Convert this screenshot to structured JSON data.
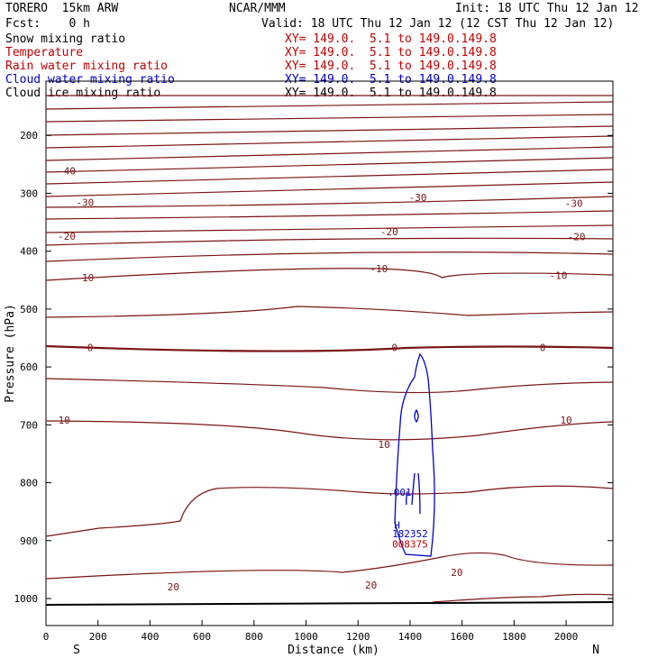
{
  "header": {
    "model": "TORERO  15km ARW",
    "org": "NCAR/MMM",
    "init": "Init: 18 UTC Thu 12 Jan 12",
    "fcst": "Fcst:    0 h",
    "valid": "Valid: 18 UTC Thu 12 Jan 12 (12 CST Thu 12 Jan 12)"
  },
  "legend": [
    {
      "label": "Snow mixing ratio",
      "xy": "XY= 149.0.  5.1 to 149.0.149.8",
      "color": "#000000"
    },
    {
      "label": "Temperature",
      "xy": "XY= 149.0.  5.1 to 149.0.149.8",
      "color": "#c00000"
    },
    {
      "label": "Rain water mixing ratio",
      "xy": "XY= 149.0.  5.1 to 149.0.149.8",
      "color": "#c00000"
    },
    {
      "label": "Cloud water mixing ratio",
      "xy": "XY= 149.0.  5.1 to 149.0.149.8",
      "color": "#0000cc"
    },
    {
      "label": "Cloud ice mixing ratio",
      "xy": "XY= 149.0.  5.1 to 149.0.149.8",
      "color": "#000000"
    }
  ],
  "chart_data": {
    "type": "contour",
    "xlabel": "Distance (km)",
    "ylabel": "Pressure (hPa)",
    "xlim": [
      0,
      2180
    ],
    "ylim": [
      1050,
      100
    ],
    "x_ticks": [
      0,
      200,
      400,
      600,
      800,
      1000,
      1200,
      1400,
      1600,
      1800,
      2000
    ],
    "y_ticks": [
      200,
      300,
      400,
      500,
      600,
      700,
      800,
      900,
      1000
    ],
    "x_end_labels": {
      "left": "S",
      "right": "N"
    },
    "temperature_color": "#7a1414",
    "cloud_color": "#0000cc",
    "temperature_labels": [
      {
        "text": "-40",
        "x": 80,
        "p": 261
      },
      {
        "text": "-30",
        "x": 150,
        "p": 316
      },
      {
        "text": "-30",
        "x": 1430,
        "p": 307
      },
      {
        "text": "-30",
        "x": 2030,
        "p": 317
      },
      {
        "text": "-20",
        "x": 80,
        "p": 374
      },
      {
        "text": "-20",
        "x": 1320,
        "p": 366
      },
      {
        "text": "-20",
        "x": 2040,
        "p": 375
      },
      {
        "text": "-10",
        "x": 150,
        "p": 446
      },
      {
        "text": "-10",
        "x": 1280,
        "p": 430
      },
      {
        "text": "-10",
        "x": 1970,
        "p": 442
      },
      {
        "text": "0",
        "x": 170,
        "p": 566
      },
      {
        "text": "0",
        "x": 1340,
        "p": 566
      },
      {
        "text": "0",
        "x": 1910,
        "p": 566
      },
      {
        "text": "10",
        "x": 70,
        "p": 692
      },
      {
        "text": "10",
        "x": 1300,
        "p": 734
      },
      {
        "text": "10",
        "x": 2000,
        "p": 692
      },
      {
        "text": "20",
        "x": 490,
        "p": 980
      },
      {
        "text": "20",
        "x": 1250,
        "p": 977
      },
      {
        "text": "20",
        "x": 1580,
        "p": 955
      }
    ],
    "cloud_labels": [
      {
        "text": ".001",
        "x": 1360,
        "p": 816,
        "color": "#0000cc"
      },
      {
        "text": "H",
        "x": 1350,
        "p": 873,
        "color": "#0000cc"
      },
      {
        "text": "182352",
        "x": 1400,
        "p": 888,
        "color": "#0000cc"
      },
      {
        "text": "008375",
        "x": 1400,
        "p": 906,
        "color": "#c00000"
      }
    ]
  }
}
